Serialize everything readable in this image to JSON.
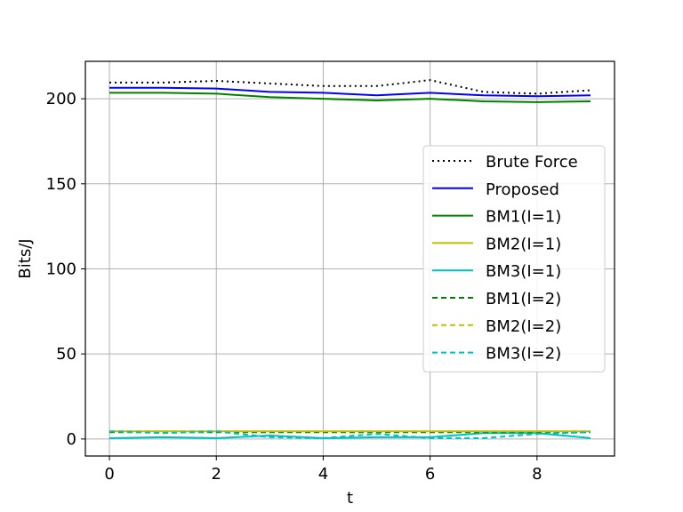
{
  "chart_data": {
    "type": "line",
    "title": "",
    "xlabel": "t",
    "ylabel": "Bits/J",
    "xlim": [
      -0.45,
      9.45
    ],
    "ylim": [
      -10,
      222
    ],
    "xticks": [
      0,
      2,
      4,
      6,
      8
    ],
    "yticks": [
      0,
      50,
      100,
      150,
      200
    ],
    "grid": true,
    "legend_position": "center-right",
    "x": [
      0,
      1,
      2,
      3,
      4,
      5,
      6,
      7,
      8,
      9
    ],
    "series": [
      {
        "name": "Brute Force",
        "color": "#000000",
        "dash": "dotted",
        "values": [
          209.5,
          209.5,
          210.5,
          209,
          207.5,
          207.5,
          211,
          204,
          203,
          205
        ]
      },
      {
        "name": "Proposed",
        "color": "#0000ff",
        "dash": "solid",
        "values": [
          206.5,
          206.5,
          206,
          204,
          203.5,
          202,
          203.5,
          202,
          201.5,
          202
        ]
      },
      {
        "name": "BM1(I=1)",
        "color": "#008000",
        "dash": "solid",
        "values": [
          203.5,
          203.5,
          203,
          201,
          200,
          199,
          200,
          198.5,
          198,
          198.5
        ]
      },
      {
        "name": "BM2(I=1)",
        "color": "#bfbf00",
        "dash": "solid",
        "values": [
          4.5,
          4.5,
          4.5,
          4.5,
          4.5,
          4.5,
          4.5,
          4.5,
          4.5,
          4.5
        ]
      },
      {
        "name": "BM3(I=1)",
        "color": "#00bfbf",
        "dash": "solid",
        "values": [
          0.5,
          1,
          0.5,
          2,
          0.5,
          1,
          1,
          3.5,
          3.5,
          0.5
        ]
      },
      {
        "name": "BM1(I=2)",
        "color": "#008000",
        "dash": "dashed",
        "values": [
          4,
          4,
          4,
          4,
          4,
          4,
          4,
          4,
          4,
          4
        ]
      },
      {
        "name": "BM2(I=2)",
        "color": "#bfbf00",
        "dash": "dashed",
        "values": [
          4.5,
          4.5,
          4.5,
          4.5,
          4.5,
          4.5,
          4.5,
          4.5,
          4.5,
          4.5
        ]
      },
      {
        "name": "BM3(I=2)",
        "color": "#00bfbf",
        "dash": "dashed",
        "values": [
          4.5,
          3.5,
          4.5,
          1,
          0.5,
          3,
          0.5,
          0.5,
          3,
          4
        ]
      }
    ]
  }
}
